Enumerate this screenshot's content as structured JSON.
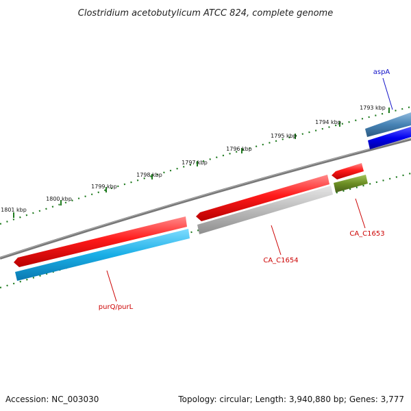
{
  "title": "Clostridium acetobutylicum ATCC 824, complete genome",
  "footer": {
    "accession": "Accession: NC_003030",
    "summary": "Topology: circular; Length: 3,940,880 bp; Genes: 3,777"
  },
  "ticks": [
    "1793 kbp",
    "1794 kbp",
    "1795 kbp",
    "1796 kbp",
    "1797 kbp",
    "1798 kbp",
    "1799 kbp",
    "1800 kbp",
    "1801 kbp"
  ],
  "genes": [
    {
      "label": "aspA",
      "color": "#1010c8"
    },
    {
      "label": "CA_C1653",
      "color": "#cc0000"
    },
    {
      "label": "CA_C1654",
      "color": "#cc0000"
    },
    {
      "label": "purQ/purL",
      "color": "#cc0000"
    }
  ],
  "colors": {
    "backbone": "#777777",
    "tick_green": "#1e7a1e",
    "cds_red": "#ee0000",
    "feature_cyan": "#1aa9e0",
    "feature_gray": "#b8b8b8",
    "feature_olive": "#6b8e23",
    "feature_steelblue": "#4682b4",
    "feature_blue": "#0000ee"
  }
}
